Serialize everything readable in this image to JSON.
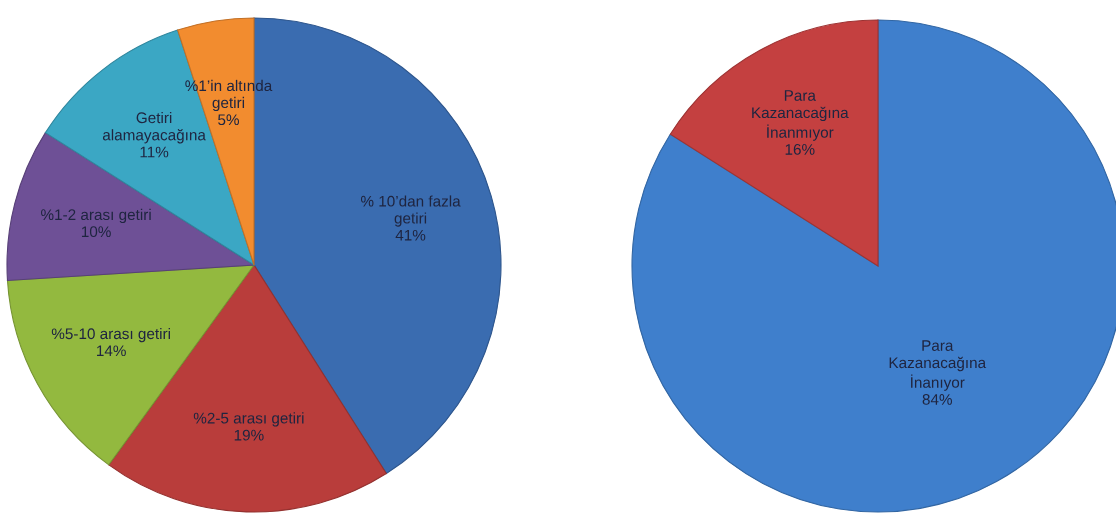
{
  "chart_data": [
    {
      "type": "pie",
      "categories": [
        "% 10’dan fazla\ngetiri",
        "%2-5 arası getiri",
        "%5-10 arası getiri",
        "%1-2 arası getiri",
        "Getiri\nalamayacağına",
        "%1’in altında\ngetiri"
      ],
      "values": [
        41,
        19,
        14,
        10,
        11,
        5
      ],
      "colors": [
        "#3a6cb0",
        "#b93d3b",
        "#93b93f",
        "#6e5096",
        "#3ba7c4",
        "#f28c2f"
      ],
      "value_labels": [
        "41%",
        "19%",
        "14%",
        "10%",
        "11%",
        "5%"
      ]
    },
    {
      "type": "pie",
      "categories": [
        "Para\nKazanacağına\nİnanıyor",
        "Para\nKazanacağına\nİnanmıyor"
      ],
      "values": [
        84,
        16
      ],
      "colors": [
        "#3f7fcc",
        "#c44040"
      ],
      "value_labels": [
        "84%",
        "16%"
      ]
    }
  ]
}
